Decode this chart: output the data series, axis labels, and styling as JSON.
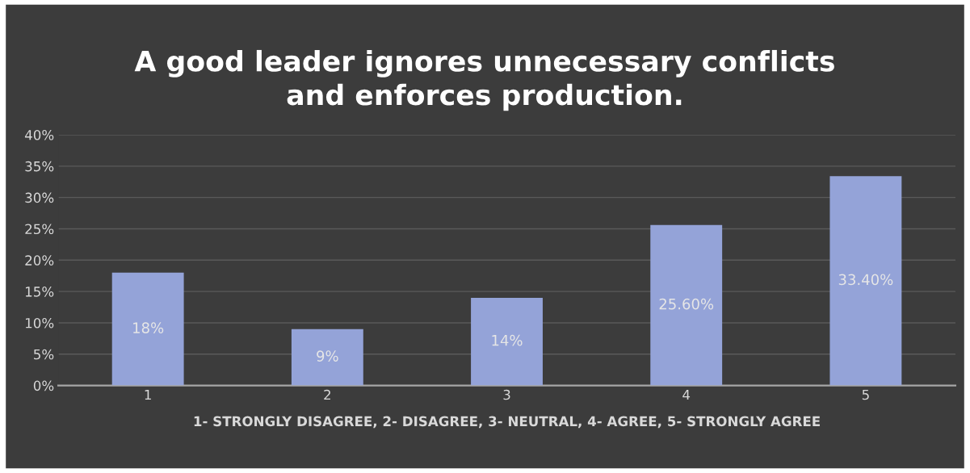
{
  "chart_data": {
    "type": "bar",
    "title": "A good leader ignores unnecessary conflicts\nand enforces production.",
    "xlabel": "1- STRONGLY DISAGREE, 2- DISAGREE, 3- NEUTRAL, 4- AGREE, 5- STRONGLY AGREE",
    "categories": [
      "1",
      "2",
      "3",
      "4",
      "5"
    ],
    "values": [
      18,
      9,
      14,
      25.6,
      33.4
    ],
    "value_labels": [
      "18%",
      "9%",
      "14%",
      "25.60%",
      "33.40%"
    ],
    "color": "#94a3d8",
    "ylim": [
      0,
      40
    ],
    "yticks": [
      {
        "value": 0,
        "label": "0%"
      },
      {
        "value": 5,
        "label": "5%"
      },
      {
        "value": 10,
        "label": "10%"
      },
      {
        "value": 15,
        "label": "15%"
      },
      {
        "value": 20,
        "label": "20%"
      },
      {
        "value": 25,
        "label": "25%"
      },
      {
        "value": 30,
        "label": "30%"
      },
      {
        "value": 35,
        "label": "35%"
      },
      {
        "value": 40,
        "label": "40%"
      }
    ],
    "grid": "y"
  }
}
